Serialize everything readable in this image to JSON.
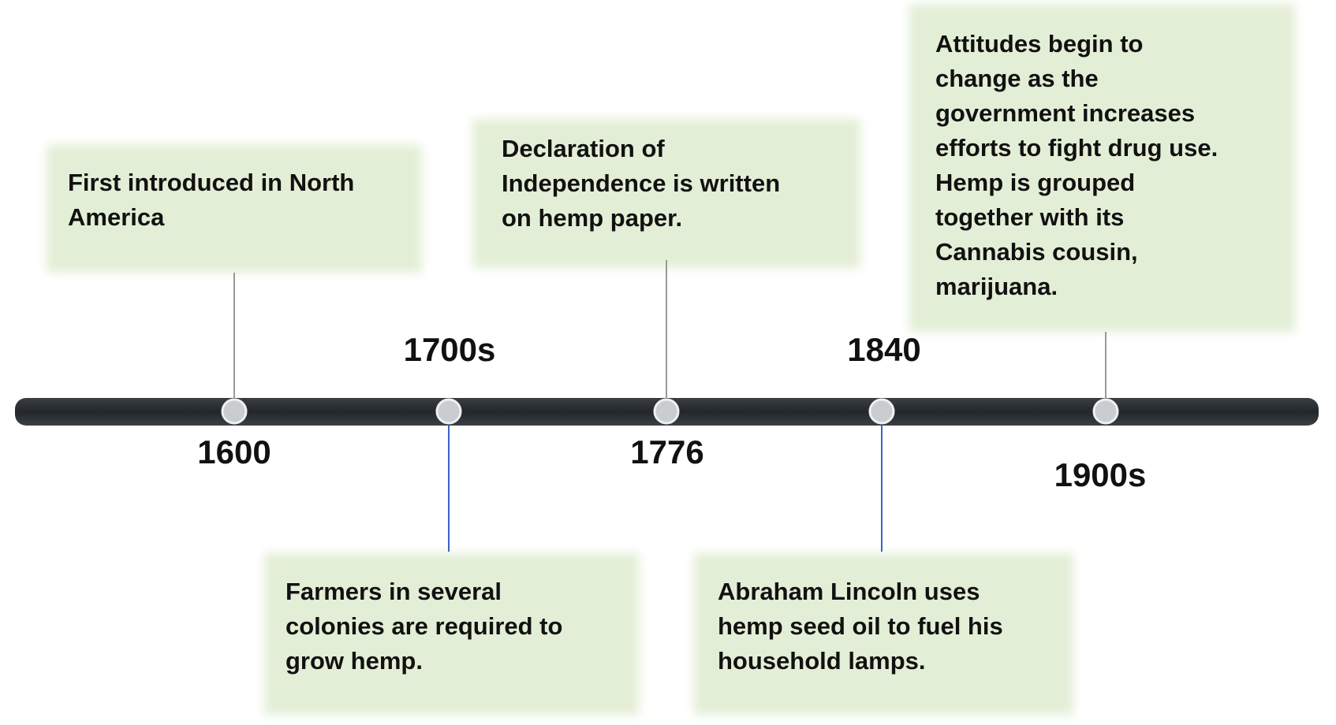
{
  "events": [
    {
      "year": "1600",
      "lines": [
        "First introduced in North",
        "America"
      ]
    },
    {
      "year": "1700s",
      "lines": [
        "Farmers in several",
        "colonies are required to",
        "grow hemp."
      ]
    },
    {
      "year": "1776",
      "lines": [
        "Declaration of",
        "Independence is written",
        "on hemp paper."
      ]
    },
    {
      "year": "1840",
      "lines": [
        "Abraham Lincoln uses",
        "hemp seed oil to fuel his",
        "household lamps."
      ]
    },
    {
      "year": "1900s",
      "lines": [
        "Attitudes begin to",
        "change as the",
        "government increases",
        "efforts to fight drug use.",
        "Hemp is grouped",
        "together with its",
        "Cannabis cousin,",
        "marijuana."
      ]
    }
  ]
}
